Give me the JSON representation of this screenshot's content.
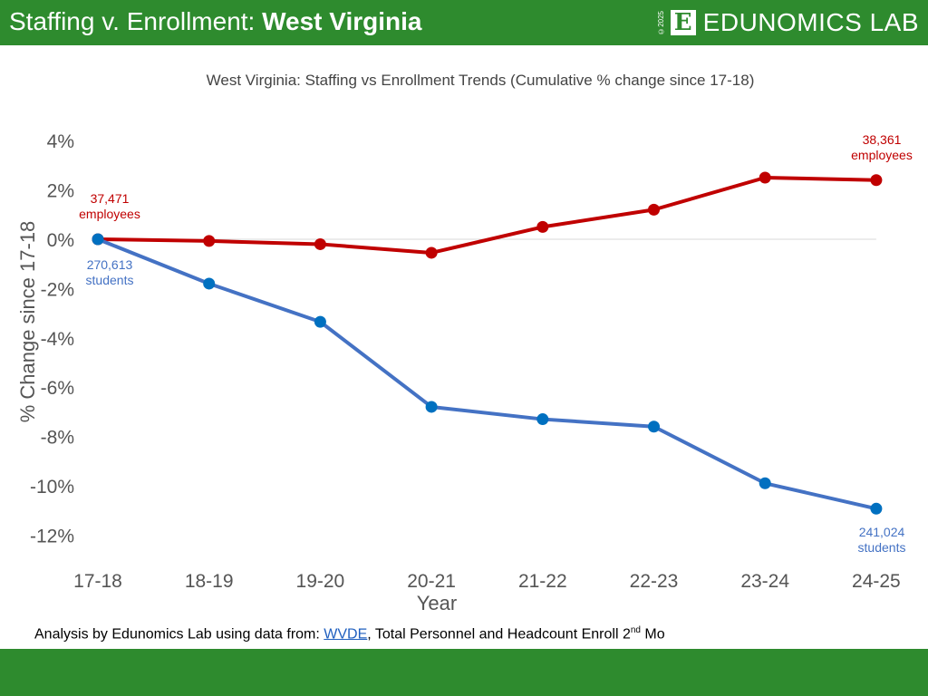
{
  "header": {
    "title_prefix": "Staffing v. Enrollment: ",
    "title_bold": "West Virginia",
    "logo_text": "EDUNOMICS LAB",
    "logo_mark": "E",
    "copyright": "©2025",
    "color": "#2e8b2e"
  },
  "footer": {
    "source_prefix": "Analysis by Edunomics Lab using data from: ",
    "source_link": "WVDE",
    "source_suffix": ", Total Personnel and Headcount Enroll 2",
    "source_sup": "nd",
    "source_end": " Mo"
  },
  "chart_data": {
    "type": "line",
    "title": "West Virginia: Staffing vs Enrollment Trends (Cumulative % change since 17-18)",
    "xlabel": "Year",
    "ylabel": "% Change since 17-18",
    "categories": [
      "17-18",
      "18-19",
      "19-20",
      "20-21",
      "21-22",
      "22-23",
      "23-24",
      "24-25"
    ],
    "ylim": [
      -12,
      4
    ],
    "yticks": [
      "4%",
      "2%",
      "0%",
      "-2%",
      "-4%",
      "-6%",
      "-8%",
      "-10%",
      "-12%"
    ],
    "ytick_values": [
      4,
      2,
      0,
      -2,
      -4,
      -6,
      -8,
      -10,
      -12
    ],
    "grid": false,
    "series": [
      {
        "values": [
          0,
          -0.07,
          -0.2,
          -0.55,
          0.5,
          1.2,
          2.5,
          2.4
        ],
        "color": "#c00000",
        "start_label": [
          "37,471",
          "employees"
        ],
        "end_label": [
          "38,361",
          "employees"
        ]
      },
      {
        "values": [
          0,
          -1.8,
          -3.35,
          -6.8,
          -7.3,
          -7.6,
          -9.9,
          -10.93
        ],
        "color": "#4472c4",
        "marker_color": "#0070c0",
        "start_label": [
          "270,613",
          "students"
        ],
        "end_label": [
          "241,024",
          "students"
        ]
      }
    ]
  }
}
